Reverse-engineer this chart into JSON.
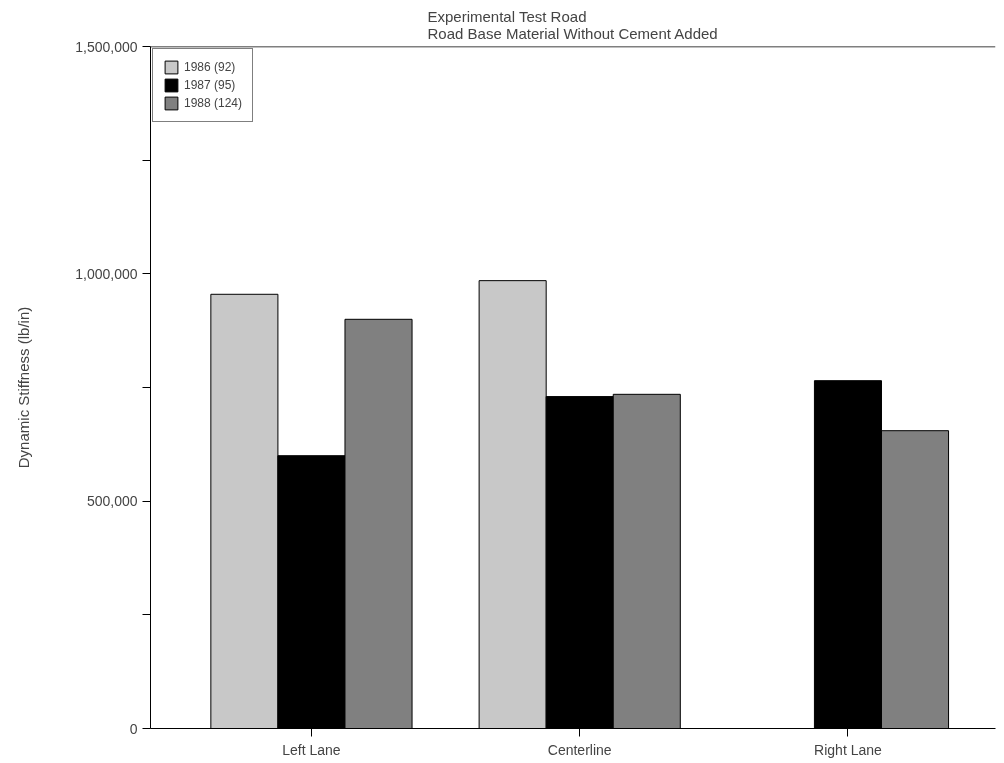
{
  "chart_data": {
    "type": "bar",
    "title": "Experimental Test Road\nRoad Base Material Without Cement Added",
    "ylabel": "Dynamic Stiffness (lb/in)",
    "categories": [
      "Left Lane",
      "Centerline",
      "Right Lane"
    ],
    "series": [
      {
        "name": "1986 (92)",
        "color": "#c8c8c8",
        "values": [
          955000,
          985000,
          null
        ]
      },
      {
        "name": "1987 (95)",
        "color": "#000000",
        "values": [
          600000,
          730000,
          765000
        ]
      },
      {
        "name": "1988 (124)",
        "color": "#808080",
        "values": [
          900000,
          735000,
          655000
        ]
      }
    ],
    "ylim": [
      0,
      1500000
    ],
    "yticks": [
      {
        "value": 0,
        "label": "0"
      },
      {
        "value": 250000,
        "label": null
      },
      {
        "value": 500000,
        "label": "500,000"
      },
      {
        "value": 750000,
        "label": null
      },
      {
        "value": 1000000,
        "label": "1,000,000"
      },
      {
        "value": 1250000,
        "label": null
      },
      {
        "value": 1500000,
        "label": "1,500,000"
      }
    ],
    "grid": false,
    "legend": "top left"
  }
}
